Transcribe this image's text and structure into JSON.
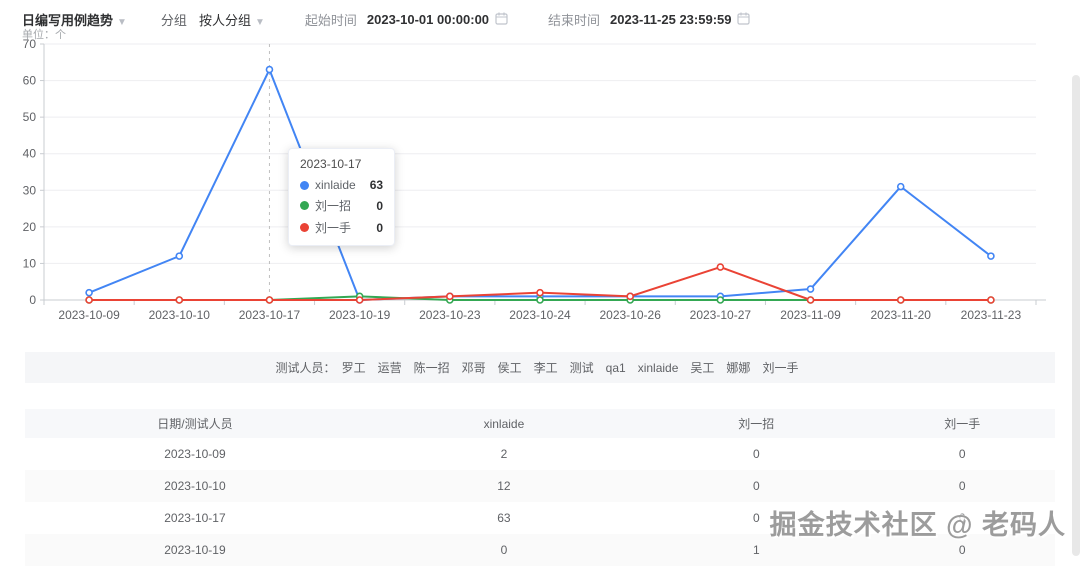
{
  "toolbar": {
    "report_type": "日编写用例趋势",
    "group_label": "分组",
    "group_value": "按人分组",
    "start_label": "起始时间",
    "start_value": "2023-10-01 00:00:00",
    "end_label": "结束时间",
    "end_value": "2023-11-25 23:59:59"
  },
  "chart": {
    "unit_label": "单位：个"
  },
  "chart_data": {
    "type": "line",
    "x": [
      "2023-10-09",
      "2023-10-10",
      "2023-10-17",
      "2023-10-19",
      "2023-10-23",
      "2023-10-24",
      "2023-10-26",
      "2023-10-27",
      "2023-11-09",
      "2023-11-20",
      "2023-11-23"
    ],
    "series": [
      {
        "name": "xinlaide",
        "color": "#4285f4",
        "values": [
          2,
          12,
          63,
          0,
          1,
          1,
          1,
          1,
          3,
          31,
          12
        ]
      },
      {
        "name": "刘一招",
        "color": "#34a853",
        "values": [
          0,
          0,
          0,
          1,
          0,
          0,
          0,
          0,
          0,
          0,
          0
        ]
      },
      {
        "name": "刘一手",
        "color": "#ea4335",
        "values": [
          0,
          0,
          0,
          0,
          1,
          2,
          1,
          9,
          0,
          0,
          0
        ]
      }
    ],
    "ylim": [
      0,
      70
    ],
    "y_ticks": [
      0,
      10,
      20,
      30,
      40,
      50,
      60,
      70
    ],
    "grid": true,
    "highlight_index": 2,
    "legend_position": "none",
    "title": "",
    "xlabel": "",
    "ylabel": "单位：个"
  },
  "tooltip": {
    "title": "2023-10-17",
    "rows": [
      {
        "name": "xinlaide",
        "value": "63",
        "color": "#4285f4"
      },
      {
        "name": "刘一招",
        "value": "0",
        "color": "#34a853"
      },
      {
        "name": "刘一手",
        "value": "0",
        "color": "#ea4335"
      }
    ]
  },
  "testers_bar": {
    "label": "测试人员：",
    "names": [
      "罗工",
      "运营",
      "陈一招",
      "邓哥",
      "侯工",
      "李工",
      "测试",
      "qa1",
      "xinlaide",
      "吴工",
      "娜娜",
      "刘一手"
    ]
  },
  "table": {
    "headers": [
      "日期/测试人员",
      "xinlaide",
      "刘一招",
      "刘一手"
    ],
    "rows": [
      [
        "2023-10-09",
        "2",
        "0",
        "0"
      ],
      [
        "2023-10-10",
        "12",
        "0",
        "0"
      ],
      [
        "2023-10-17",
        "63",
        "0",
        "0"
      ],
      [
        "2023-10-19",
        "0",
        "1",
        "0"
      ]
    ]
  },
  "watermark": "掘金技术社区 @ 老码人"
}
